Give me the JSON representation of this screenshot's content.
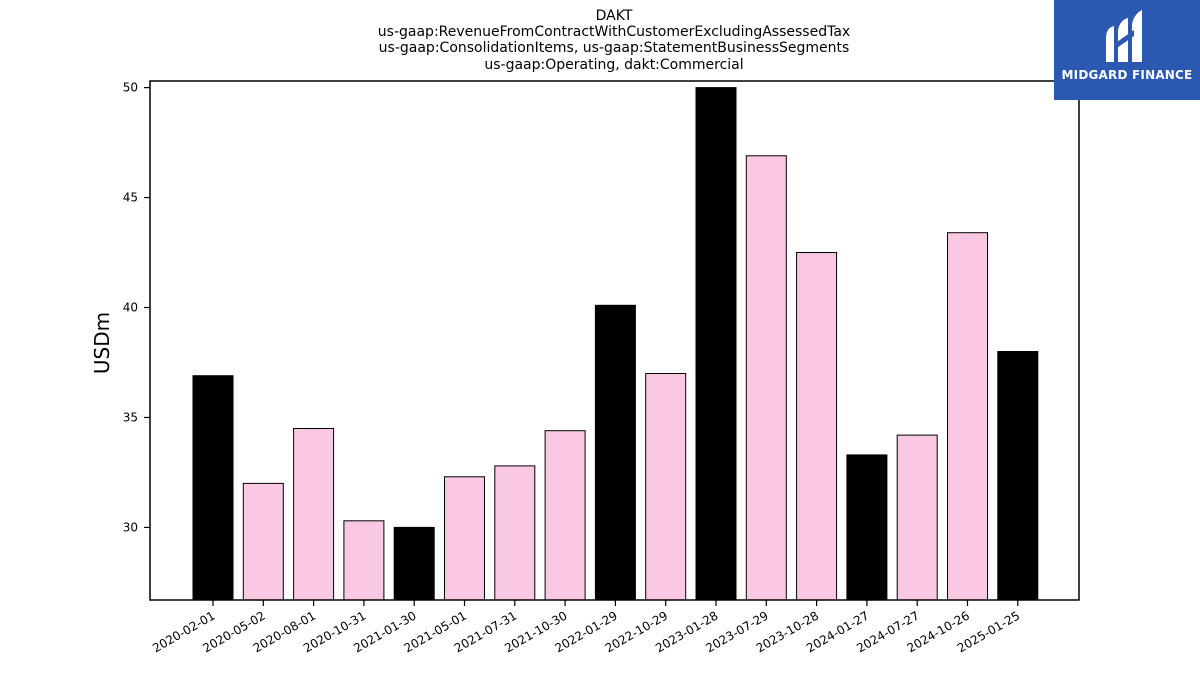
{
  "chart_data": {
    "type": "bar",
    "title_lines": [
      "DAKT",
      "us-gaap:RevenueFromContractWithCustomerExcludingAssessedTax",
      "us-gaap:ConsolidationItems, us-gaap:StatementBusinessSegments",
      "us-gaap:Operating, dakt:Commercial"
    ],
    "ylabel": "USDm",
    "xlabel": "",
    "ylim": [
      26.7,
      50.3
    ],
    "yticks": [
      30,
      35,
      40,
      45,
      50
    ],
    "categories": [
      "2020-02-01",
      "2020-05-02",
      "2020-08-01",
      "2020-10-31",
      "2021-01-30",
      "2021-05-01",
      "2021-07-31",
      "2021-10-30",
      "2022-01-29",
      "2022-10-29",
      "2023-01-28",
      "2023-07-29",
      "2023-10-28",
      "2024-01-27",
      "2024-07-27",
      "2024-10-26",
      "2025-01-25"
    ],
    "values": [
      36.9,
      32.0,
      34.5,
      30.3,
      30.0,
      32.3,
      32.8,
      34.4,
      40.1,
      37.0,
      50.0,
      46.9,
      42.5,
      33.3,
      34.2,
      43.4,
      38.0
    ],
    "bar_colors": [
      "#000000",
      "#fbc8e4",
      "#fbc8e4",
      "#fbc8e4",
      "#000000",
      "#fbc8e4",
      "#fbc8e4",
      "#fbc8e4",
      "#000000",
      "#fbc8e4",
      "#000000",
      "#fbc8e4",
      "#fbc8e4",
      "#000000",
      "#fbc8e4",
      "#fbc8e4",
      "#000000"
    ],
    "grid": false,
    "legend": "none"
  },
  "logo": {
    "text": "MIDGARD FINANCE",
    "background": "#2b58b0"
  }
}
